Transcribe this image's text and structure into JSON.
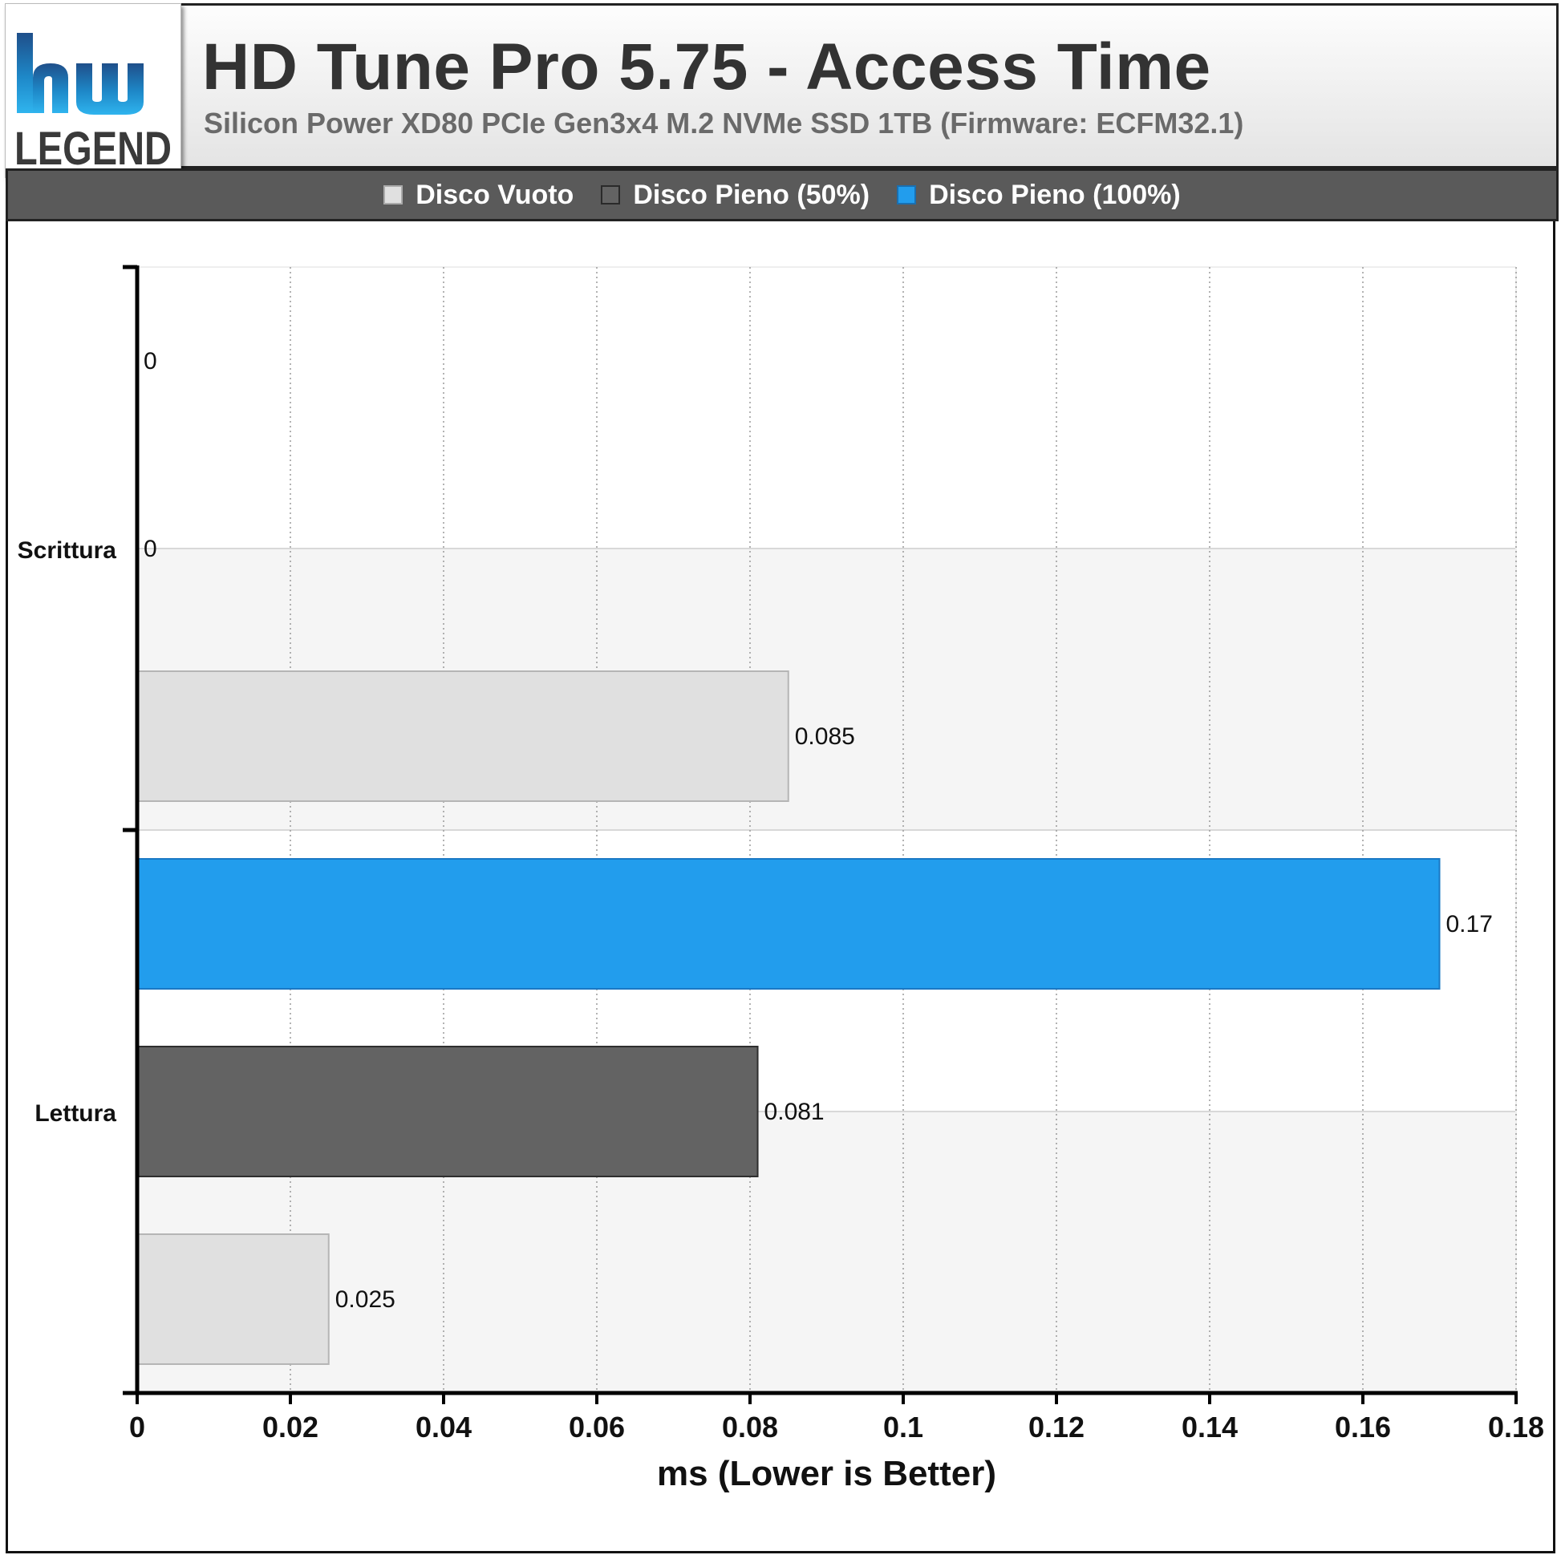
{
  "header": {
    "title": "HD Tune Pro 5.75 - Access Time",
    "subtitle": "Silicon Power XD80 PCIe Gen3x4 M.2 NVMe SSD 1TB (Firmware: ECFM32.1)"
  },
  "logo": {
    "line1": "hw",
    "line2": "LEGEND"
  },
  "legend": [
    {
      "label": "Disco Vuoto",
      "color": "#e0e0e0"
    },
    {
      "label": "Disco Pieno (50%)",
      "color": "#636363"
    },
    {
      "label": "Disco Pieno (100%)",
      "color": "#229ded"
    }
  ],
  "chart_data": {
    "type": "bar",
    "orientation": "horizontal",
    "categories": [
      "Scrittura",
      "Lettura"
    ],
    "series": [
      {
        "name": "Disco Vuoto",
        "color": "#e0e0e0",
        "values": [
          0.085,
          0.025
        ]
      },
      {
        "name": "Disco Pieno (50%)",
        "color": "#636363",
        "values": [
          0,
          0.081
        ]
      },
      {
        "name": "Disco Pieno (100%)",
        "color": "#229ded",
        "values": [
          0,
          0.17
        ]
      }
    ],
    "data_labels": [
      [
        "0.085",
        "0",
        "0"
      ],
      [
        "0.025",
        "0.081",
        "0.17"
      ]
    ],
    "xlabel": "ms (Lower is Better)",
    "xlim": [
      0,
      0.18
    ],
    "xticks": [
      "0",
      "0.02",
      "0.04",
      "0.06",
      "0.08",
      "0.1",
      "0.12",
      "0.14",
      "0.16",
      "0.18"
    ],
    "grid": true
  }
}
